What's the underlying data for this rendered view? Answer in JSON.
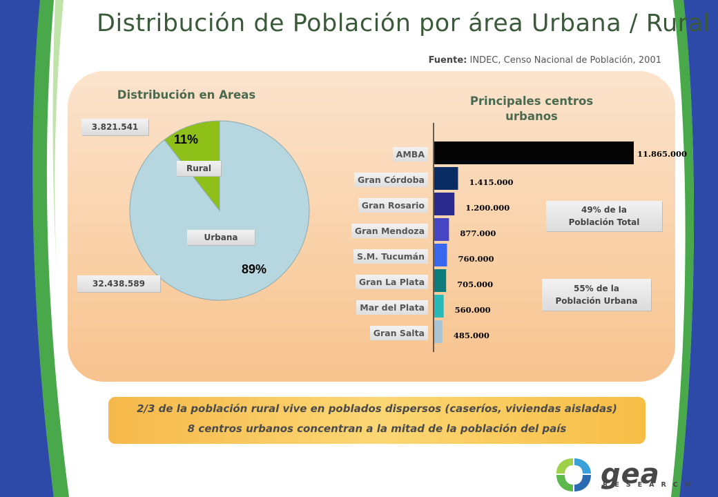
{
  "title": "Distribución de Población por área Urbana / Rural",
  "source": {
    "label": "Fuente:",
    "text": "INDEC, Censo Nacional de Población, 2001"
  },
  "left_chart": {
    "subtitle": "Distribución en Areas",
    "rural_count": "3.821.541",
    "urban_count": "32.438.589",
    "rural_label": "Rural",
    "urban_label": "Urbana",
    "rural_pct": "11%",
    "urban_pct": "89%"
  },
  "right_chart": {
    "subtitle_line1": "Principales centros",
    "subtitle_line2": "urbanos",
    "note_total_line1": "49% de la",
    "note_total_line2": "Población Total",
    "note_urban_line1": "55% de la",
    "note_urban_line2": "Población Urbana"
  },
  "chart_data": [
    {
      "type": "pie",
      "title": "Distribución en Areas",
      "categories": [
        "Rural",
        "Urbana"
      ],
      "values": [
        3821541,
        32438589
      ],
      "percent_labels": [
        "11%",
        "89%"
      ],
      "value_labels": [
        "3.821.541",
        "32.438.589"
      ],
      "colors": [
        "#8fbf19",
        "#b6d7df"
      ]
    },
    {
      "type": "bar",
      "orientation": "horizontal",
      "title": "Principales centros urbanos",
      "categories": [
        "AMBA",
        "Gran Córdoba",
        "Gran Rosario",
        "Gran Mendoza",
        "S.M. Tucumán",
        "Gran La Plata",
        "Mar del Plata",
        "Gran Salta"
      ],
      "values": [
        11865000,
        1415000,
        1200000,
        877000,
        760000,
        705000,
        560000,
        485000
      ],
      "value_labels": [
        "11.865.000",
        "1.415.000",
        "1.200.000",
        "877.000",
        "760.000",
        "705.000",
        "560.000",
        "485.000"
      ],
      "colors": [
        "#050505",
        "#0b2c63",
        "#2a2a8e",
        "#4646c4",
        "#3b66ee",
        "#0e7b7b",
        "#2ab9b9",
        "#a8c4d4"
      ],
      "grid": false
    }
  ],
  "bottom": {
    "line1": "2/3 de la población rural vive en poblados dispersos (caseríos, viviendas aisladas)",
    "line2": "8 centros urbanos concentran a la mitad de la población del país"
  },
  "logo": {
    "name": "gea",
    "sub": "RESEARCH"
  }
}
